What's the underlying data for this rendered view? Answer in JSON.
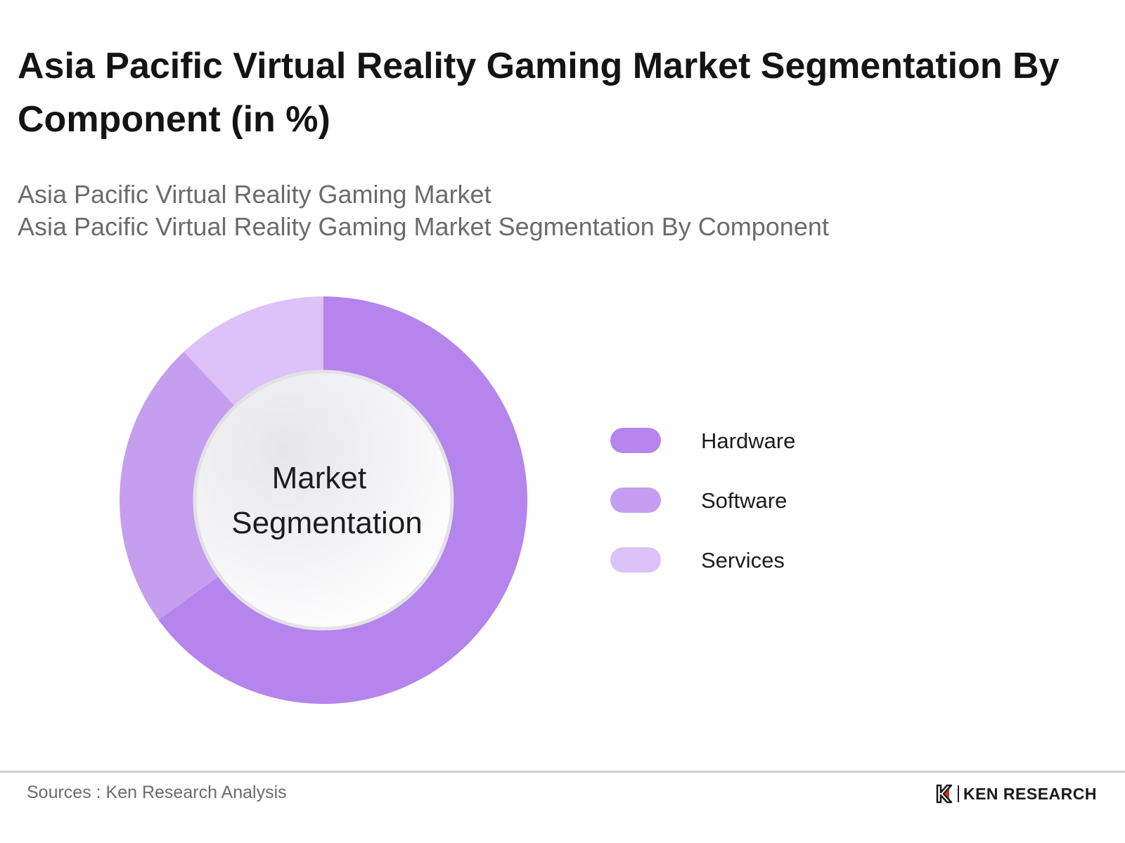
{
  "title": "Asia Pacific Virtual Reality Gaming Market Segmentation By Component (in %)",
  "subtitle_lines": [
    "Asia Pacific Virtual Reality Gaming Market",
    "Asia Pacific Virtual Reality Gaming Market Segmentation By Component"
  ],
  "chart_data": {
    "type": "pie",
    "variant": "donut",
    "center_label_lines": [
      "Market",
      "Segmentation"
    ],
    "categories": [
      "Hardware",
      "Software",
      "Services"
    ],
    "values": [
      65,
      23,
      12
    ],
    "unit": "%",
    "colors": [
      "#b584ec",
      "#c69ef0",
      "#dcc2f7"
    ],
    "legend_position": "right",
    "start_angle": "top",
    "direction": "clockwise"
  },
  "footer": {
    "source": "Sources : Ken Research Analysis",
    "brand": "KEN RESEARCH",
    "brand_icon": "ken-research-logo-icon"
  }
}
